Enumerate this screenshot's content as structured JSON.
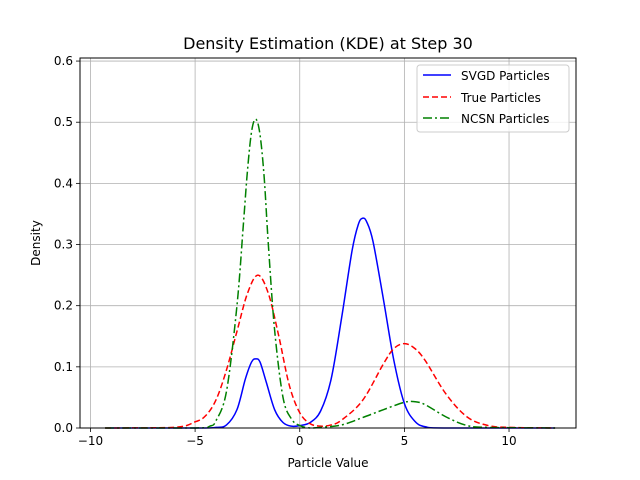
{
  "chart_data": {
    "type": "line",
    "title": "Density Estimation (KDE) at Step 30",
    "xlabel": "Particle Value",
    "ylabel": "Density",
    "xlim": [
      -10.5,
      13.2
    ],
    "ylim": [
      0,
      0.605
    ],
    "xticks": [
      -10,
      -5,
      0,
      5,
      10
    ],
    "yticks": [
      0.0,
      0.1,
      0.2,
      0.3,
      0.4,
      0.5,
      0.6
    ],
    "xtick_labels": [
      "−10",
      "−5",
      "0",
      "5",
      "10"
    ],
    "ytick_labels": [
      "0.0",
      "0.1",
      "0.2",
      "0.3",
      "0.4",
      "0.5",
      "0.6"
    ],
    "grid": true,
    "legend_position": "top-right",
    "series": [
      {
        "name": "SVGD Particles",
        "color": "#0000ff",
        "linestyle": "solid",
        "x": [
          -9.3,
          -5.0,
          -4.0,
          -3.5,
          -3.0,
          -2.6,
          -2.3,
          -2.1,
          -1.9,
          -1.6,
          -1.2,
          -0.8,
          -0.4,
          0.0,
          0.5,
          1.0,
          1.5,
          2.0,
          2.5,
          2.8,
          3.0,
          3.2,
          3.5,
          4.0,
          4.5,
          5.0,
          5.5,
          6.0,
          7.0,
          12.2
        ],
        "y": [
          0.0,
          0.0,
          0.001,
          0.005,
          0.03,
          0.08,
          0.108,
          0.113,
          0.108,
          0.075,
          0.03,
          0.009,
          0.003,
          0.004,
          0.009,
          0.028,
          0.08,
          0.18,
          0.29,
          0.333,
          0.343,
          0.337,
          0.305,
          0.21,
          0.11,
          0.04,
          0.011,
          0.002,
          0.0,
          0.0
        ]
      },
      {
        "name": "True Particles",
        "color": "#ff0000",
        "linestyle": "dashed",
        "x": [
          -9.3,
          -6.0,
          -5.0,
          -4.5,
          -4.0,
          -3.5,
          -3.0,
          -2.5,
          -2.0,
          -1.5,
          -1.0,
          -0.5,
          0.0,
          0.5,
          1.0,
          1.5,
          2.0,
          3.0,
          4.0,
          4.5,
          5.0,
          5.5,
          6.0,
          7.0,
          8.0,
          9.0,
          10.0,
          12.2
        ],
        "y": [
          0.0,
          0.001,
          0.01,
          0.02,
          0.046,
          0.095,
          0.158,
          0.22,
          0.25,
          0.22,
          0.15,
          0.07,
          0.025,
          0.007,
          0.003,
          0.005,
          0.013,
          0.045,
          0.105,
          0.13,
          0.138,
          0.13,
          0.11,
          0.055,
          0.018,
          0.004,
          0.001,
          0.0
        ]
      },
      {
        "name": "NCSN Particles",
        "color": "#008000",
        "linestyle": "dashdot",
        "x": [
          -9.3,
          -5.0,
          -4.3,
          -4.0,
          -3.5,
          -3.0,
          -2.7,
          -2.5,
          -2.3,
          -2.1,
          -1.9,
          -1.7,
          -1.5,
          -1.2,
          -0.8,
          -0.4,
          0.0,
          0.5,
          1.0,
          2.0,
          3.0,
          4.0,
          5.0,
          5.5,
          6.0,
          7.0,
          8.0,
          9.0,
          12.2
        ],
        "y": [
          0.0,
          0.0,
          0.003,
          0.012,
          0.06,
          0.2,
          0.33,
          0.42,
          0.485,
          0.505,
          0.48,
          0.41,
          0.3,
          0.16,
          0.05,
          0.015,
          0.004,
          0.0,
          0.001,
          0.005,
          0.017,
          0.03,
          0.042,
          0.043,
          0.038,
          0.018,
          0.004,
          0.001,
          0.0
        ]
      }
    ]
  }
}
